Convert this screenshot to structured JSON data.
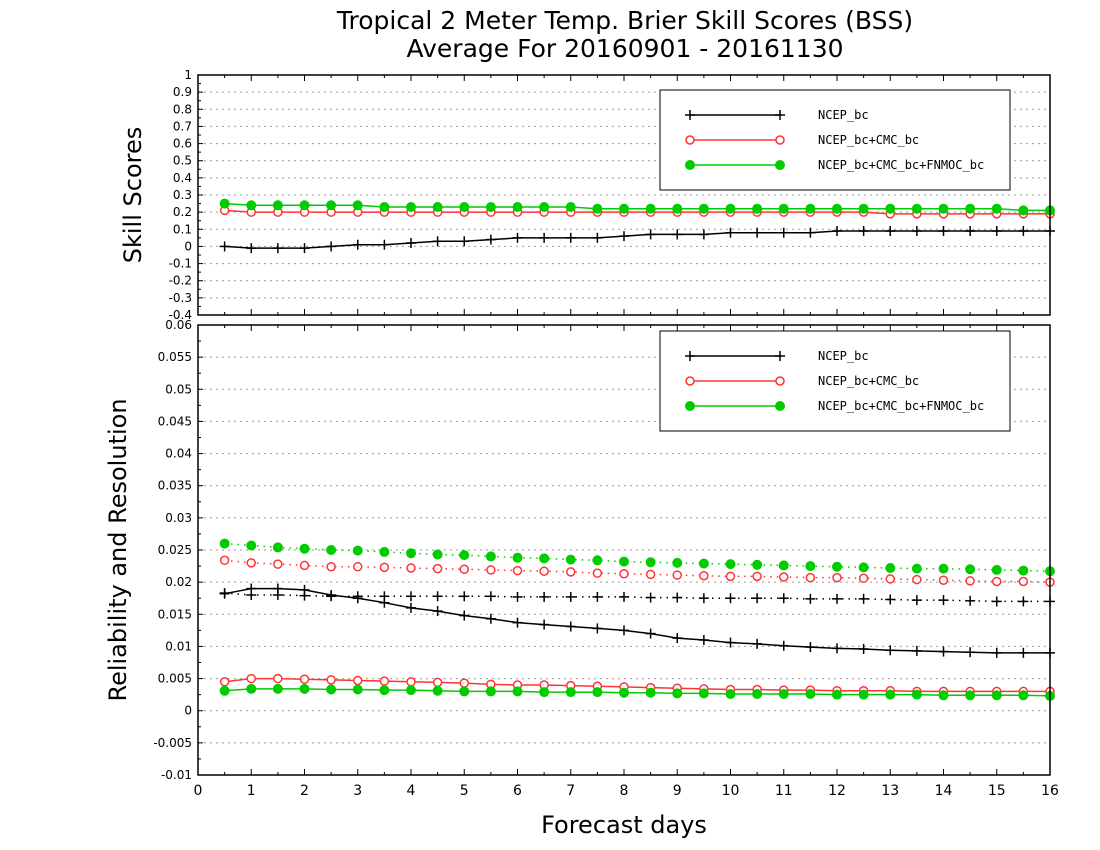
{
  "title_line1": "Tropical 2 Meter Temp. Brier Skill Scores (BSS)",
  "title_line2": "Average For 20160901 - 20161130",
  "xlabel": "Forecast days",
  "colors": {
    "ncep": "#000000",
    "cmc": "#ff3333",
    "fnmoc": "#00cc00",
    "grid": "#999999"
  },
  "chart_data": [
    {
      "type": "line",
      "ylabel": "Skill Scores",
      "xlim": [
        0,
        16
      ],
      "ylim": [
        -0.4,
        1
      ],
      "yticks": [
        "-0.4",
        "-0.3",
        "-0.2",
        "-0.1",
        "0",
        "0.1",
        "0.2",
        "0.3",
        "0.4",
        "0.5",
        "0.6",
        "0.7",
        "0.8",
        "0.9",
        "1"
      ],
      "xticks": [
        "0",
        "1",
        "2",
        "3",
        "4",
        "5",
        "6",
        "7",
        "8",
        "9",
        "10",
        "11",
        "12",
        "13",
        "14",
        "15",
        "16"
      ],
      "grid": true,
      "legend_position": "top-right",
      "x": [
        0.5,
        1,
        1.5,
        2,
        2.5,
        3,
        3.5,
        4,
        4.5,
        5,
        5.5,
        6,
        6.5,
        7,
        7.5,
        8,
        8.5,
        9,
        9.5,
        10,
        10.5,
        11,
        11.5,
        12,
        12.5,
        13,
        13.5,
        14,
        14.5,
        15,
        15.5,
        16
      ],
      "series": [
        {
          "name": "NCEP_bc",
          "color_key": "ncep",
          "marker": "plus",
          "line": "solid",
          "values": [
            0.0,
            -0.01,
            -0.01,
            -0.01,
            0.0,
            0.01,
            0.01,
            0.02,
            0.03,
            0.03,
            0.04,
            0.05,
            0.05,
            0.05,
            0.05,
            0.06,
            0.07,
            0.07,
            0.07,
            0.08,
            0.08,
            0.08,
            0.08,
            0.09,
            0.09,
            0.09,
            0.09,
            0.09,
            0.09,
            0.09,
            0.09,
            0.09
          ]
        },
        {
          "name": "NCEP_bc+CMC_bc",
          "color_key": "cmc",
          "marker": "circle-open",
          "line": "solid",
          "values": [
            0.21,
            0.2,
            0.2,
            0.2,
            0.2,
            0.2,
            0.2,
            0.2,
            0.2,
            0.2,
            0.2,
            0.2,
            0.2,
            0.2,
            0.2,
            0.2,
            0.2,
            0.2,
            0.2,
            0.2,
            0.2,
            0.2,
            0.2,
            0.2,
            0.2,
            0.19,
            0.19,
            0.19,
            0.19,
            0.19,
            0.19,
            0.19
          ]
        },
        {
          "name": "NCEP_bc+CMC_bc+FNMOC_bc",
          "color_key": "fnmoc",
          "marker": "circle-filled",
          "line": "solid",
          "values": [
            0.25,
            0.24,
            0.24,
            0.24,
            0.24,
            0.24,
            0.23,
            0.23,
            0.23,
            0.23,
            0.23,
            0.23,
            0.23,
            0.23,
            0.22,
            0.22,
            0.22,
            0.22,
            0.22,
            0.22,
            0.22,
            0.22,
            0.22,
            0.22,
            0.22,
            0.22,
            0.22,
            0.22,
            0.22,
            0.22,
            0.21,
            0.21
          ]
        }
      ]
    },
    {
      "type": "line",
      "ylabel": "Reliability and Resolution",
      "xlim": [
        0,
        16
      ],
      "ylim": [
        -0.01,
        0.06
      ],
      "yticks": [
        "-0.01",
        "-0.005",
        "0",
        "0.005",
        "0.01",
        "0.015",
        "0.02",
        "0.025",
        "0.03",
        "0.035",
        "0.04",
        "0.045",
        "0.05",
        "0.055",
        "0.06"
      ],
      "xticks": [
        "0",
        "1",
        "2",
        "3",
        "4",
        "5",
        "6",
        "7",
        "8",
        "9",
        "10",
        "11",
        "12",
        "13",
        "14",
        "15",
        "16"
      ],
      "grid": true,
      "legend_position": "top-right",
      "x": [
        0.5,
        1,
        1.5,
        2,
        2.5,
        3,
        3.5,
        4,
        4.5,
        5,
        5.5,
        6,
        6.5,
        7,
        7.5,
        8,
        8.5,
        9,
        9.5,
        10,
        10.5,
        11,
        11.5,
        12,
        12.5,
        13,
        13.5,
        14,
        14.5,
        15,
        15.5,
        16
      ],
      "series": [
        {
          "name": "NCEP_bc",
          "color_key": "ncep",
          "marker": "plus",
          "line": "solid",
          "legend": true,
          "values": [
            0.0182,
            0.019,
            0.019,
            0.0188,
            0.018,
            0.0175,
            0.0168,
            0.016,
            0.0155,
            0.0148,
            0.0143,
            0.0137,
            0.0134,
            0.0131,
            0.0128,
            0.0125,
            0.012,
            0.0113,
            0.011,
            0.0106,
            0.0104,
            0.0101,
            0.0099,
            0.0097,
            0.0096,
            0.0094,
            0.0093,
            0.0092,
            0.0091,
            0.009,
            0.009,
            0.009
          ]
        },
        {
          "name": "NCEP_bc+CMC_bc",
          "color_key": "cmc",
          "marker": "circle-open",
          "line": "solid",
          "legend": true,
          "values": [
            0.0045,
            0.005,
            0.005,
            0.0049,
            0.0048,
            0.0047,
            0.0046,
            0.0045,
            0.0044,
            0.0043,
            0.0041,
            0.004,
            0.004,
            0.0039,
            0.0038,
            0.0037,
            0.0036,
            0.0035,
            0.0034,
            0.0033,
            0.0033,
            0.0032,
            0.0032,
            0.0031,
            0.0031,
            0.0031,
            0.003,
            0.003,
            0.003,
            0.003,
            0.003,
            0.003
          ]
        },
        {
          "name": "NCEP_bc+CMC_bc+FNMOC_bc",
          "color_key": "fnmoc",
          "marker": "circle-filled",
          "line": "solid",
          "legend": true,
          "values": [
            0.0031,
            0.0034,
            0.0034,
            0.0034,
            0.0033,
            0.0033,
            0.0032,
            0.0032,
            0.0031,
            0.003,
            0.003,
            0.003,
            0.0029,
            0.0029,
            0.0029,
            0.0028,
            0.0028,
            0.0027,
            0.0027,
            0.0026,
            0.0026,
            0.0026,
            0.0026,
            0.0025,
            0.0025,
            0.0025,
            0.0025,
            0.0024,
            0.0024,
            0.0024,
            0.0024,
            0.0023
          ]
        },
        {
          "name": "",
          "color_key": "ncep",
          "marker": "plus",
          "line": "dotted",
          "legend": false,
          "values": [
            0.0183,
            0.018,
            0.018,
            0.0179,
            0.0178,
            0.0178,
            0.0178,
            0.0178,
            0.0178,
            0.0178,
            0.0178,
            0.0177,
            0.0177,
            0.0177,
            0.0177,
            0.0177,
            0.0176,
            0.0176,
            0.0175,
            0.0175,
            0.0175,
            0.0175,
            0.0174,
            0.0174,
            0.0174,
            0.0173,
            0.0172,
            0.0172,
            0.0171,
            0.017,
            0.017,
            0.017
          ]
        },
        {
          "name": "",
          "color_key": "cmc",
          "marker": "circle-open",
          "line": "dotted",
          "legend": false,
          "values": [
            0.0234,
            0.023,
            0.0228,
            0.0226,
            0.0224,
            0.0224,
            0.0223,
            0.0222,
            0.0221,
            0.022,
            0.0219,
            0.0218,
            0.0217,
            0.0216,
            0.0214,
            0.0213,
            0.0212,
            0.0211,
            0.021,
            0.0209,
            0.0209,
            0.0208,
            0.0207,
            0.0207,
            0.0206,
            0.0205,
            0.0204,
            0.0203,
            0.0202,
            0.0201,
            0.0201,
            0.02
          ]
        },
        {
          "name": "",
          "color_key": "fnmoc",
          "marker": "circle-filled",
          "line": "dotted",
          "legend": false,
          "values": [
            0.026,
            0.0257,
            0.0254,
            0.0252,
            0.025,
            0.0249,
            0.0247,
            0.0245,
            0.0243,
            0.0242,
            0.024,
            0.0238,
            0.0237,
            0.0235,
            0.0234,
            0.0232,
            0.0231,
            0.023,
            0.0229,
            0.0228,
            0.0227,
            0.0226,
            0.0225,
            0.0224,
            0.0223,
            0.0222,
            0.0221,
            0.0221,
            0.022,
            0.0219,
            0.0218,
            0.0217
          ]
        }
      ]
    }
  ]
}
